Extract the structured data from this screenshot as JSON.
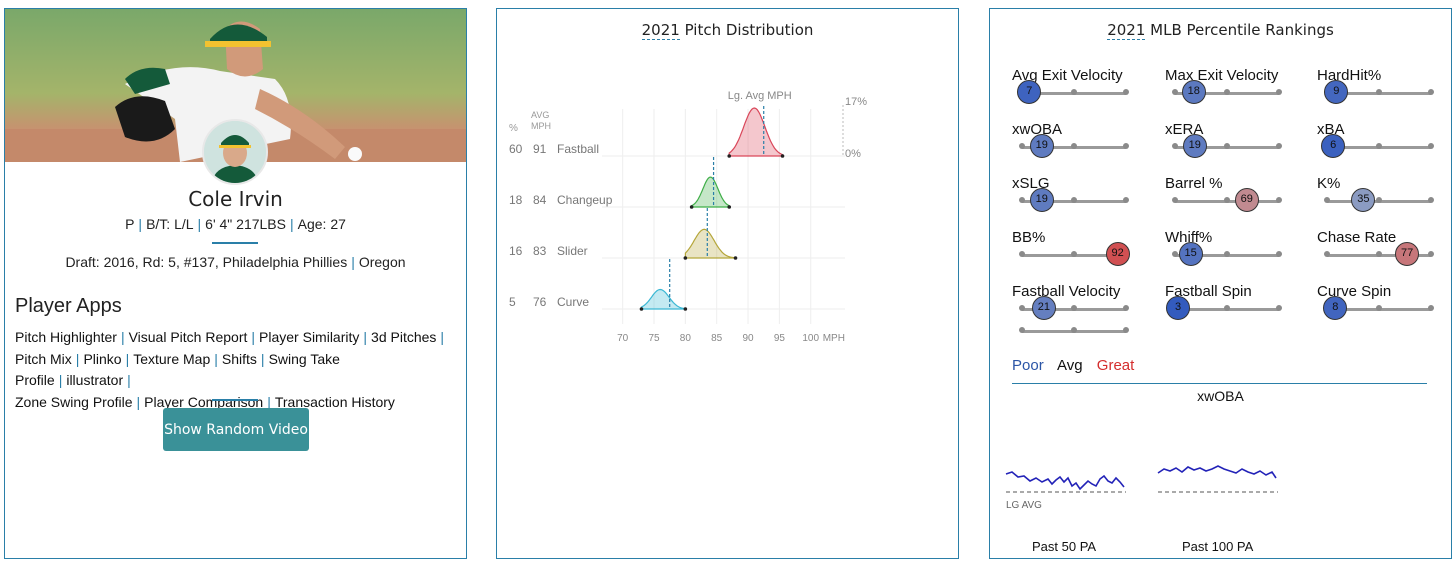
{
  "player": {
    "name": "Cole Irvin",
    "position": "P",
    "bat_throw": "B/T: L/L",
    "height_weight": "6' 4\" 217LBS",
    "age": "Age: 27",
    "draft_label": "Draft:",
    "draft_year": "2016",
    "draft_round": "Rd: 5, #137,",
    "draft_team": "Philadelphia Phillies",
    "school": "Oregon"
  },
  "apps": {
    "title": "Player Apps",
    "items": [
      "Pitch Highlighter",
      "Visual Pitch Report",
      "Player Similarity",
      "3d Pitches",
      "Pitch Mix",
      "Plinko",
      "Texture Map",
      "Shifts",
      "Swing Take Profile",
      "illustrator",
      "Zone Swing Profile",
      "Player Comparison",
      "Transaction History"
    ]
  },
  "video_button": "Show Random Video",
  "pitch_dist": {
    "title_year": "2021",
    "title_rest": "Pitch Distribution",
    "col_pct": "%",
    "col_avg": "AVG",
    "col_mph": "MPH",
    "lg_avg_label": "Lg. Avg MPH",
    "scale_top": "17%",
    "scale_bottom": "0%",
    "x_unit": "MPH"
  },
  "chart_data": {
    "type": "area",
    "title": "2021 Pitch Distribution",
    "xlabel": "MPH",
    "xlim": [
      67,
      101
    ],
    "xticks": [
      70,
      75,
      80,
      85,
      90,
      95,
      100
    ],
    "series": [
      {
        "name": "Fastball",
        "pct": 60,
        "avg_mph": 91,
        "lg_avg_mph": 92.5,
        "min": 87,
        "max": 95.5,
        "color": "#d9475a"
      },
      {
        "name": "Changeup",
        "pct": 18,
        "avg_mph": 84,
        "lg_avg_mph": 84.5,
        "min": 81,
        "max": 87,
        "color": "#3fae48"
      },
      {
        "name": "Slider",
        "pct": 16,
        "avg_mph": 83,
        "lg_avg_mph": 83.5,
        "min": 80,
        "max": 88,
        "color": "#b5a63a"
      },
      {
        "name": "Curve",
        "pct": 5,
        "avg_mph": 76,
        "lg_avg_mph": 77.5,
        "min": 73,
        "max": 80,
        "color": "#3bb8d4"
      }
    ]
  },
  "percentiles": {
    "title_year": "2021",
    "title_rest": "MLB Percentile Rankings",
    "items": [
      {
        "label": "Avg Exit Velocity",
        "value": 7
      },
      {
        "label": "Max Exit Velocity",
        "value": 18
      },
      {
        "label": "HardHit%",
        "value": 9
      },
      {
        "label": "xwOBA",
        "value": 19
      },
      {
        "label": "xERA",
        "value": 19
      },
      {
        "label": "xBA",
        "value": 6
      },
      {
        "label": "xSLG",
        "value": 19
      },
      {
        "label": "Barrel %",
        "value": 69
      },
      {
        "label": "K%",
        "value": 35
      },
      {
        "label": "BB%",
        "value": 92
      },
      {
        "label": "Whiff%",
        "value": 15
      },
      {
        "label": "Chase Rate",
        "value": 77
      },
      {
        "label": "Fastball Velocity",
        "value": 21
      },
      {
        "label": "Fastball Spin",
        "value": 3
      },
      {
        "label": "Curve Spin",
        "value": 8
      }
    ],
    "legend": {
      "poor": "Poor",
      "avg": "Avg",
      "great": "Great"
    },
    "colors": {
      "poor": "#2b55a6",
      "great": "#d42d2d"
    }
  },
  "xwoba": {
    "title": "xwOBA",
    "lg_avg": "LG AVG",
    "past_50": "Past 50 PA",
    "past_100": "Past 100 PA"
  }
}
